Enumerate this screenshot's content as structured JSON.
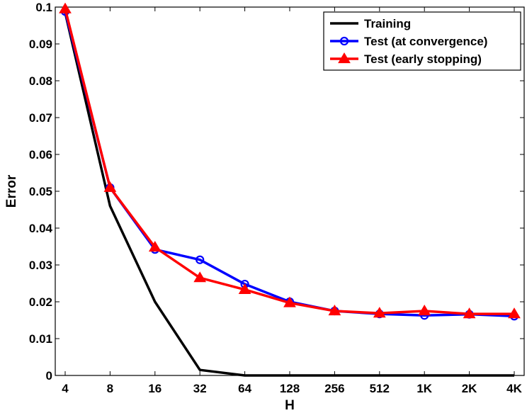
{
  "chart_data": {
    "type": "line",
    "xlabel": "H",
    "ylabel": "Error",
    "categories": [
      "4",
      "8",
      "16",
      "32",
      "64",
      "128",
      "256",
      "512",
      "1K",
      "2K",
      "4K"
    ],
    "ylim": [
      0,
      0.1
    ],
    "yticks": [
      "0",
      "0.01",
      "0.02",
      "0.03",
      "0.04",
      "0.05",
      "0.06",
      "0.07",
      "0.08",
      "0.09",
      "0.1"
    ],
    "grid": false,
    "legend_position": "top-right",
    "series": [
      {
        "name": "Training",
        "color": "#000000",
        "marker": "none",
        "values": [
          0.0985,
          0.046,
          0.02,
          0.0015,
          0.0,
          0.0,
          0.0,
          0.0,
          0.0,
          0.0,
          0.0
        ]
      },
      {
        "name": "Test (at convergence)",
        "color": "#0000ff",
        "marker": "circle",
        "values": [
          0.0988,
          0.051,
          0.0342,
          0.0314,
          0.0248,
          0.02,
          0.0175,
          0.0167,
          0.0163,
          0.0166,
          0.0161
        ]
      },
      {
        "name": "Test (early stopping)",
        "color": "#ff0000",
        "marker": "triangle",
        "values": [
          0.0995,
          0.051,
          0.0348,
          0.0265,
          0.0233,
          0.0197,
          0.0175,
          0.0169,
          0.0175,
          0.0167,
          0.0167
        ]
      }
    ]
  }
}
